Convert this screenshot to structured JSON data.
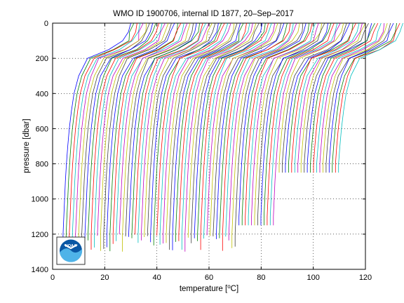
{
  "chart_data": {
    "type": "line",
    "title": "WMO ID 1900706, internal ID 1877, 20–Sep–2017",
    "xlabel": "temperature [°C]",
    "xlabel_parts": {
      "pre": "temperature [",
      "sup": "o",
      "post": "C]"
    },
    "ylabel": "pressure [dbar]",
    "xlim": [
      0,
      120
    ],
    "ylim": [
      1400,
      0
    ],
    "y_reversed": true,
    "grid": true,
    "grid_style": "dotted",
    "xticks": [
      "0",
      "20",
      "40",
      "60",
      "80",
      "100",
      "120"
    ],
    "xtick_values": [
      0,
      20,
      40,
      60,
      80,
      100,
      120
    ],
    "yticks": [
      "0",
      "200",
      "400",
      "600",
      "800",
      "1000",
      "1200",
      "1400"
    ],
    "ytick_values": [
      0,
      200,
      400,
      600,
      800,
      1000,
      1200,
      1400
    ],
    "profile_count": 88,
    "profile_offset_step_degC": 1.2,
    "profile_shape": {
      "pressure": [
        0,
        50,
        100,
        150,
        200,
        300,
        400,
        500,
        600,
        700,
        800,
        900,
        1000,
        1100,
        1200
      ],
      "temperature_relative": [
        26,
        25,
        23.5,
        18,
        9.5,
        6,
        4.2,
        3.2,
        2.4,
        1.8,
        1.3,
        0.9,
        0.6,
        0.3,
        0.0
      ]
    },
    "series_colors": [
      "#0000ff",
      "#008000",
      "#ff0000",
      "#00bfbf",
      "#bf00bf",
      "#bfbf00",
      "#404040"
    ],
    "logo_text": "NOAA"
  }
}
